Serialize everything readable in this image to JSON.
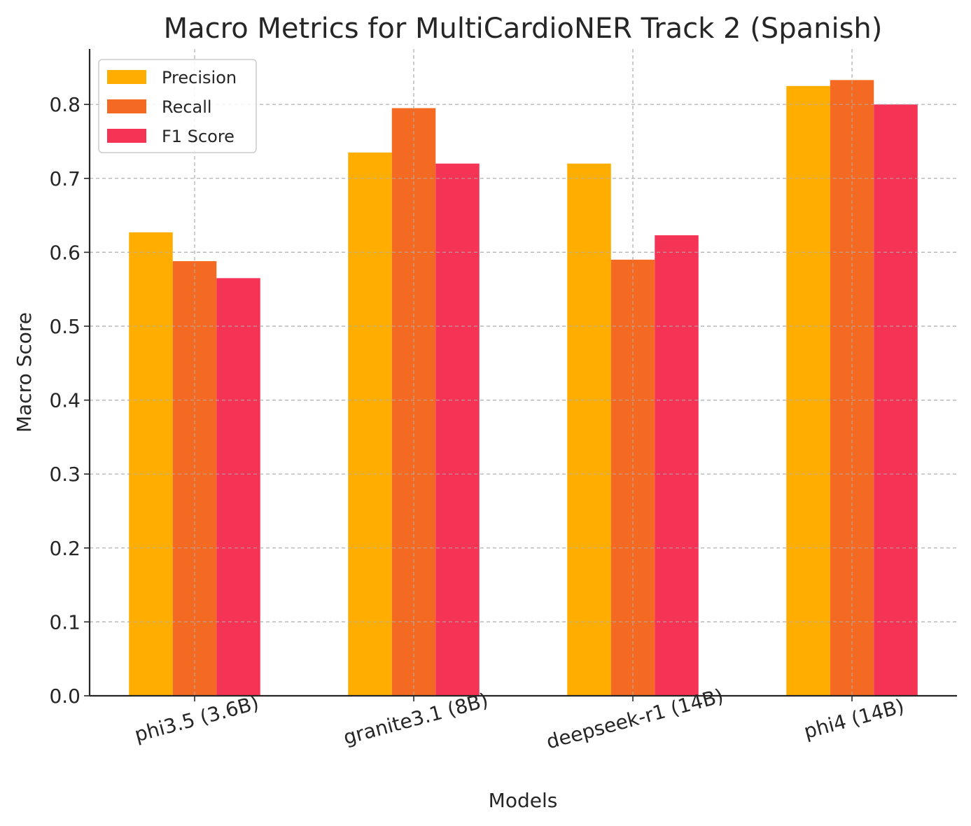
{
  "chart_data": {
    "type": "bar",
    "title": "Macro Metrics for MultiCardioNER Track 2 (Spanish)",
    "xlabel": "Models",
    "ylabel": "Macro Score",
    "categories": [
      "phi3.5 (3.6B)",
      "granite3.1 (8B)",
      "deepseek-r1 (14B)",
      "phi4 (14B)"
    ],
    "series": [
      {
        "name": "Precision",
        "color": "#FFAE00",
        "values": [
          0.627,
          0.735,
          0.72,
          0.825
        ]
      },
      {
        "name": "Recall",
        "color": "#F46A22",
        "values": [
          0.588,
          0.795,
          0.59,
          0.833
        ]
      },
      {
        "name": "F1 Score",
        "color": "#F53355",
        "values": [
          0.565,
          0.72,
          0.623,
          0.8
        ]
      }
    ],
    "ylim": [
      0,
      0.875
    ],
    "yticks": [
      "0.0",
      "0.1",
      "0.2",
      "0.3",
      "0.4",
      "0.5",
      "0.6",
      "0.7",
      "0.8"
    ],
    "grid": true,
    "legend_position": "top-left",
    "xtick_rotation_deg": -15
  }
}
